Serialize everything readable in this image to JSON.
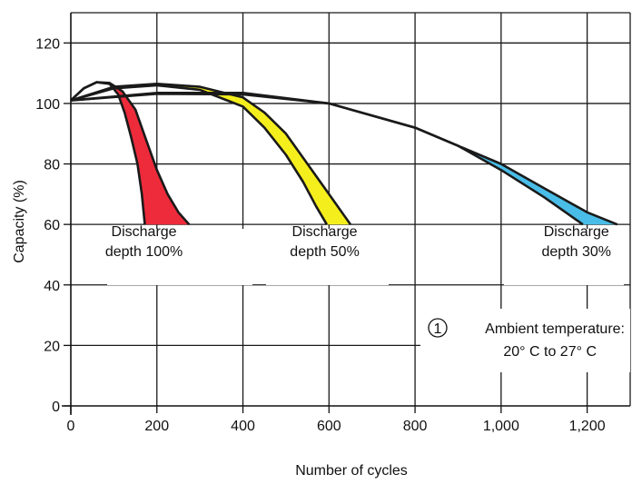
{
  "chart_data": {
    "type": "line",
    "xlabel": "Number of cycles",
    "ylabel": "Capacity (%)",
    "xlim": [
      0,
      1300
    ],
    "ylim": [
      0,
      130
    ],
    "x_ticks": [
      0,
      200,
      400,
      600,
      800,
      1000,
      1200
    ],
    "x_tick_labels": [
      "0",
      "200",
      "400",
      "600",
      "800",
      "1,000",
      "1,200"
    ],
    "y_ticks": [
      0,
      20,
      40,
      60,
      80,
      100,
      120
    ],
    "y_tick_labels": [
      "0",
      "20",
      "40",
      "60",
      "80",
      "100",
      "120"
    ],
    "grid": true,
    "colors": {
      "band_100": "#ee2b3b",
      "band_50": "#f5ee1d",
      "band_30": "#49bde8",
      "line": "#1a1a1a",
      "grid": "#1a1a1a"
    },
    "series": [
      {
        "upper": [
          [
            0,
            101
          ],
          [
            30,
            105
          ],
          [
            60,
            107
          ],
          [
            90,
            106.8
          ],
          [
            120,
            104
          ],
          [
            150,
            98
          ],
          [
            175,
            88
          ],
          [
            200,
            78
          ],
          [
            225,
            70
          ],
          [
            250,
            64
          ],
          [
            275,
            60
          ]
        ],
        "lower": [
          [
            0,
            101
          ],
          [
            30,
            105
          ],
          [
            60,
            107
          ],
          [
            90,
            106.5
          ],
          [
            110,
            103
          ],
          [
            125,
            97
          ],
          [
            140,
            89
          ],
          [
            155,
            80
          ],
          [
            165,
            70
          ],
          [
            172,
            60
          ]
        ]
      },
      {
        "upper": [
          [
            0,
            101
          ],
          [
            100,
            105.5
          ],
          [
            200,
            106.5
          ],
          [
            300,
            105.5
          ],
          [
            400,
            102
          ],
          [
            450,
            97
          ],
          [
            500,
            90
          ],
          [
            550,
            80
          ],
          [
            600,
            70
          ],
          [
            650,
            60
          ]
        ],
        "lower": [
          [
            0,
            101
          ],
          [
            100,
            105
          ],
          [
            200,
            106
          ],
          [
            300,
            104.5
          ],
          [
            400,
            99
          ],
          [
            450,
            92
          ],
          [
            500,
            83
          ],
          [
            540,
            74
          ],
          [
            570,
            66
          ],
          [
            595,
            60
          ]
        ]
      },
      {
        "upper": [
          [
            0,
            101
          ],
          [
            200,
            103.5
          ],
          [
            400,
            103.5
          ],
          [
            600,
            100
          ],
          [
            800,
            92
          ],
          [
            900,
            86
          ],
          [
            1000,
            80
          ],
          [
            1100,
            72
          ],
          [
            1200,
            64
          ],
          [
            1270,
            60
          ]
        ],
        "lower": [
          [
            0,
            101
          ],
          [
            200,
            103.2
          ],
          [
            400,
            103
          ],
          [
            600,
            100
          ],
          [
            800,
            92
          ],
          [
            900,
            86
          ],
          [
            1000,
            78
          ],
          [
            1100,
            69
          ],
          [
            1150,
            64
          ],
          [
            1190,
            60
          ]
        ]
      }
    ],
    "annotations": [
      {
        "line1": "Discharge",
        "line2": "depth 100%",
        "x": 170,
        "y": 57
      },
      {
        "line1": "Discharge",
        "line2": "depth 50%",
        "x": 590,
        "y": 57
      },
      {
        "line1": "Discharge",
        "line2": "depth 30%",
        "x": 1175,
        "y": 57
      }
    ],
    "note": {
      "marker": "1",
      "line1": "Ambient temperature:",
      "line2": "20° C to 27° C"
    }
  }
}
